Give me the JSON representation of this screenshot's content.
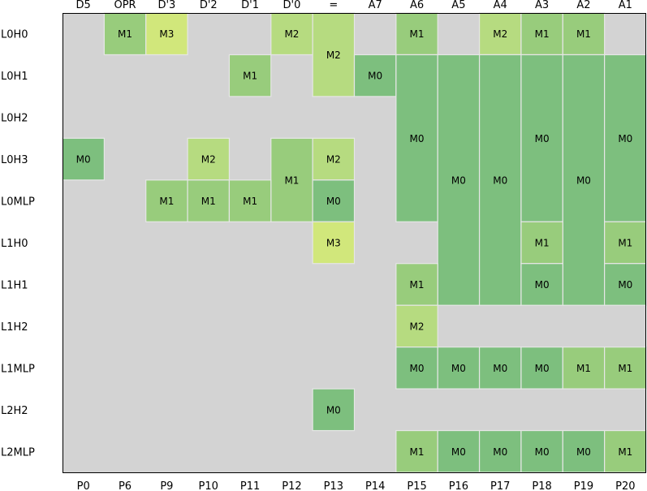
{
  "chart_data": {
    "type": "heatmap",
    "columns_top": [
      "D5",
      "OPR",
      "D'3",
      "D'2",
      "D'1",
      "D'0",
      "=",
      "A7",
      "A6",
      "A5",
      "A4",
      "A3",
      "A2",
      "A1"
    ],
    "columns_bottom": [
      "P0",
      "P6",
      "P9",
      "P10",
      "P11",
      "P12",
      "P13",
      "P14",
      "P15",
      "P16",
      "P17",
      "P18",
      "P19",
      "P20"
    ],
    "rows": [
      "L0H0",
      "L0H1",
      "L0H2",
      "L0H3",
      "L0MLP",
      "L1H0",
      "L1H1",
      "L1H2",
      "L1MLP",
      "L2H2",
      "L2MLP"
    ],
    "level_colors": {
      "M0": "#7dbf7e",
      "M1": "#98cc7c",
      "M2": "#b6db80",
      "M3": "#d1e77b"
    },
    "background_color": "#d3d3d3",
    "cell_edge_color": "#e6e6e6",
    "frame_color": "#000000",
    "cells": [
      {
        "column": "P6",
        "from": "L0H0",
        "to": "L0H0",
        "label": "M1"
      },
      {
        "column": "P9",
        "from": "L0H0",
        "to": "L0H0",
        "label": "M3"
      },
      {
        "column": "P12",
        "from": "L0H0",
        "to": "L0H0",
        "label": "M2"
      },
      {
        "column": "P13",
        "from": "L0H0",
        "to": "L0H1",
        "label": "M2"
      },
      {
        "column": "P15",
        "from": "L0H0",
        "to": "L0H0",
        "label": "M1"
      },
      {
        "column": "P17",
        "from": "L0H0",
        "to": "L0H0",
        "label": "M2"
      },
      {
        "column": "P18",
        "from": "L0H0",
        "to": "L0H0",
        "label": "M1"
      },
      {
        "column": "P19",
        "from": "L0H0",
        "to": "L0H0",
        "label": "M1"
      },
      {
        "column": "P11",
        "from": "L0H1",
        "to": "L0H1",
        "label": "M1"
      },
      {
        "column": "P14",
        "from": "L0H1",
        "to": "L0H1",
        "label": "M0"
      },
      {
        "column": "P15",
        "from": "L0H1",
        "to": "L0MLP",
        "label": "M0"
      },
      {
        "column": "P16",
        "from": "L0H1",
        "to": "L1H1",
        "label": "M0"
      },
      {
        "column": "P17",
        "from": "L0H1",
        "to": "L1H1",
        "label": "M0"
      },
      {
        "column": "P18",
        "from": "L0H1",
        "to": "L0MLP",
        "label": "M0"
      },
      {
        "column": "P19",
        "from": "L0H1",
        "to": "L1H1",
        "label": "M0"
      },
      {
        "column": "P20",
        "from": "L0H1",
        "to": "L0MLP",
        "label": "M0"
      },
      {
        "column": "P0",
        "from": "L0H3",
        "to": "L0H3",
        "label": "M0"
      },
      {
        "column": "P10",
        "from": "L0H3",
        "to": "L0H3",
        "label": "M2"
      },
      {
        "column": "P12",
        "from": "L0H3",
        "to": "L0MLP",
        "label": "M1"
      },
      {
        "column": "P13",
        "from": "L0H3",
        "to": "L0H3",
        "label": "M2"
      },
      {
        "column": "P9",
        "from": "L0MLP",
        "to": "L0MLP",
        "label": "M1"
      },
      {
        "column": "P10",
        "from": "L0MLP",
        "to": "L0MLP",
        "label": "M1"
      },
      {
        "column": "P11",
        "from": "L0MLP",
        "to": "L0MLP",
        "label": "M1"
      },
      {
        "column": "P13",
        "from": "L0MLP",
        "to": "L0MLP",
        "label": "M0"
      },
      {
        "column": "P13",
        "from": "L1H0",
        "to": "L1H0",
        "label": "M3"
      },
      {
        "column": "P18",
        "from": "L1H0",
        "to": "L1H0",
        "label": "M1"
      },
      {
        "column": "P20",
        "from": "L1H0",
        "to": "L1H0",
        "label": "M1"
      },
      {
        "column": "P15",
        "from": "L1H1",
        "to": "L1H1",
        "label": "M1"
      },
      {
        "column": "P18",
        "from": "L1H1",
        "to": "L1H1",
        "label": "M0"
      },
      {
        "column": "P20",
        "from": "L1H1",
        "to": "L1H1",
        "label": "M0"
      },
      {
        "column": "P15",
        "from": "L1H2",
        "to": "L1H2",
        "label": "M2"
      },
      {
        "column": "P15",
        "from": "L1MLP",
        "to": "L1MLP",
        "label": "M0"
      },
      {
        "column": "P16",
        "from": "L1MLP",
        "to": "L1MLP",
        "label": "M0"
      },
      {
        "column": "P17",
        "from": "L1MLP",
        "to": "L1MLP",
        "label": "M0"
      },
      {
        "column": "P18",
        "from": "L1MLP",
        "to": "L1MLP",
        "label": "M0"
      },
      {
        "column": "P19",
        "from": "L1MLP",
        "to": "L1MLP",
        "label": "M1"
      },
      {
        "column": "P20",
        "from": "L1MLP",
        "to": "L1MLP",
        "label": "M1"
      },
      {
        "column": "P13",
        "from": "L2H2",
        "to": "L2H2",
        "label": "M0"
      },
      {
        "column": "P15",
        "from": "L2MLP",
        "to": "L2MLP",
        "label": "M1"
      },
      {
        "column": "P16",
        "from": "L2MLP",
        "to": "L2MLP",
        "label": "M0"
      },
      {
        "column": "P17",
        "from": "L2MLP",
        "to": "L2MLP",
        "label": "M0"
      },
      {
        "column": "P18",
        "from": "L2MLP",
        "to": "L2MLP",
        "label": "M0"
      },
      {
        "column": "P19",
        "from": "L2MLP",
        "to": "L2MLP",
        "label": "M0"
      },
      {
        "column": "P20",
        "from": "L2MLP",
        "to": "L2MLP",
        "label": "M1"
      }
    ]
  }
}
